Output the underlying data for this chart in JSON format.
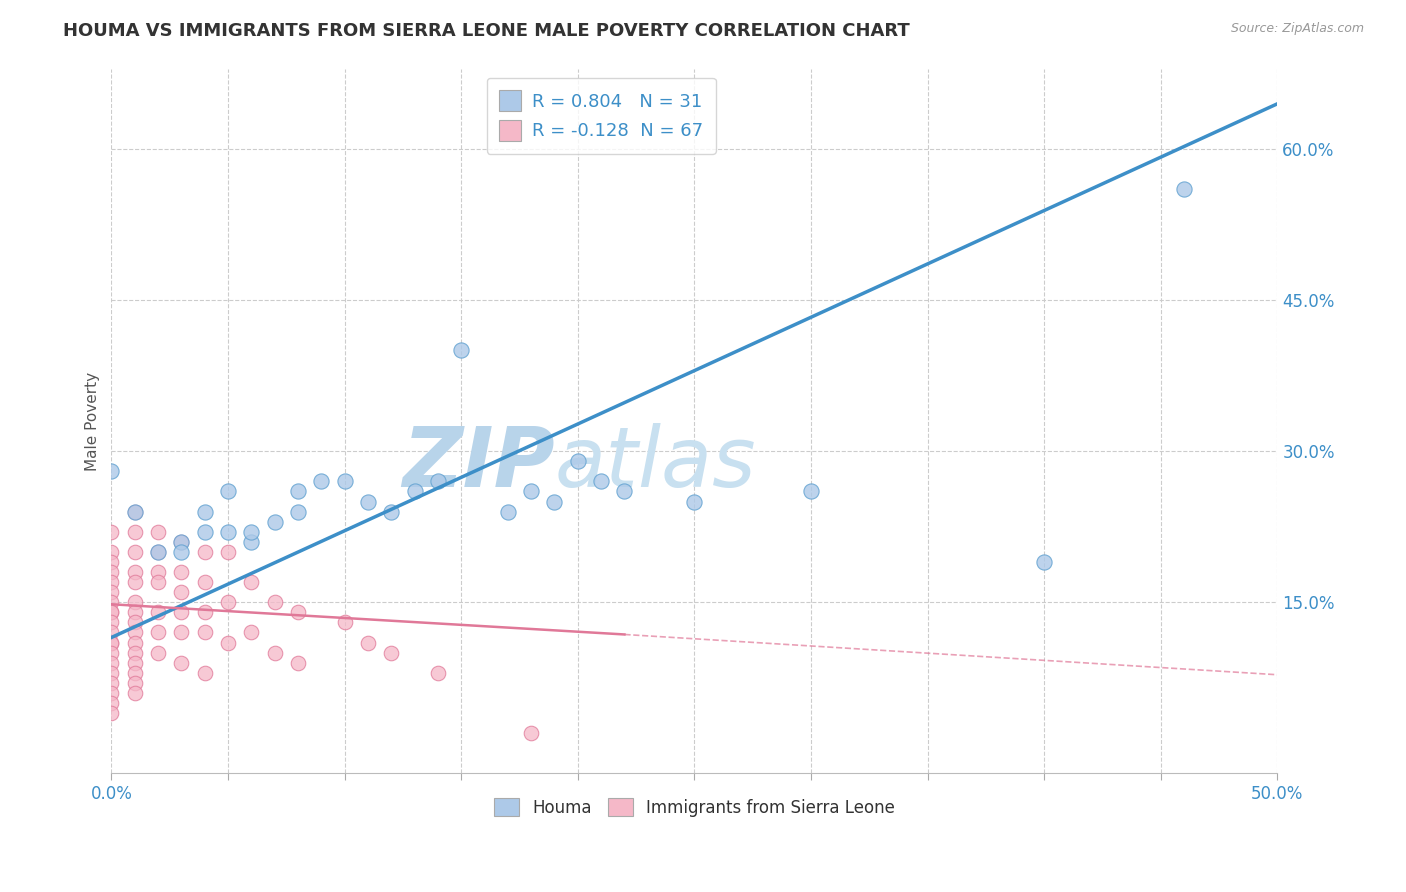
{
  "title": "HOUMA VS IMMIGRANTS FROM SIERRA LEONE MALE POVERTY CORRELATION CHART",
  "source": "Source: ZipAtlas.com",
  "ylabel": "Male Poverty",
  "xlim": [
    0.0,
    0.5
  ],
  "ylim": [
    -0.02,
    0.68
  ],
  "xticks": [
    0.0,
    0.05,
    0.1,
    0.15,
    0.2,
    0.25,
    0.3,
    0.35,
    0.4,
    0.45,
    0.5
  ],
  "xticklabels": [
    "0.0%",
    "",
    "",
    "",
    "",
    "",
    "",
    "",
    "",
    "",
    "50.0%"
  ],
  "yticks_right": [
    0.15,
    0.3,
    0.45,
    0.6
  ],
  "ytick_right_labels": [
    "15.0%",
    "30.0%",
    "45.0%",
    "60.0%"
  ],
  "houma_R": 0.804,
  "houma_N": 31,
  "sierra_leone_R": -0.128,
  "sierra_leone_N": 67,
  "houma_color": "#adc9e8",
  "houma_color_dark": "#5fa0d0",
  "houma_line_color": "#3d8fc8",
  "sierra_color": "#f5b8c8",
  "sierra_color_dark": "#e07898",
  "sierra_line_color": "#e07898",
  "watermark_color": "#d0e8f5",
  "background_color": "#ffffff",
  "grid_color": "#cccccc",
  "houma_x": [
    0.0,
    0.01,
    0.02,
    0.03,
    0.03,
    0.04,
    0.04,
    0.05,
    0.05,
    0.06,
    0.06,
    0.07,
    0.08,
    0.08,
    0.09,
    0.1,
    0.11,
    0.12,
    0.13,
    0.14,
    0.15,
    0.17,
    0.18,
    0.19,
    0.2,
    0.21,
    0.22,
    0.25,
    0.3,
    0.4,
    0.46
  ],
  "houma_y": [
    0.28,
    0.24,
    0.2,
    0.21,
    0.2,
    0.22,
    0.24,
    0.22,
    0.26,
    0.21,
    0.22,
    0.23,
    0.24,
    0.26,
    0.27,
    0.27,
    0.25,
    0.24,
    0.26,
    0.27,
    0.4,
    0.24,
    0.26,
    0.25,
    0.29,
    0.27,
    0.26,
    0.25,
    0.26,
    0.19,
    0.56
  ],
  "sierra_x": [
    0.0,
    0.0,
    0.0,
    0.0,
    0.0,
    0.0,
    0.0,
    0.0,
    0.0,
    0.0,
    0.0,
    0.0,
    0.0,
    0.0,
    0.0,
    0.0,
    0.0,
    0.0,
    0.0,
    0.0,
    0.01,
    0.01,
    0.01,
    0.01,
    0.01,
    0.01,
    0.01,
    0.01,
    0.01,
    0.01,
    0.01,
    0.01,
    0.01,
    0.01,
    0.01,
    0.02,
    0.02,
    0.02,
    0.02,
    0.02,
    0.02,
    0.02,
    0.03,
    0.03,
    0.03,
    0.03,
    0.03,
    0.03,
    0.04,
    0.04,
    0.04,
    0.04,
    0.04,
    0.05,
    0.05,
    0.05,
    0.06,
    0.06,
    0.07,
    0.07,
    0.08,
    0.08,
    0.1,
    0.11,
    0.12,
    0.14,
    0.18
  ],
  "sierra_y": [
    0.22,
    0.2,
    0.19,
    0.18,
    0.17,
    0.16,
    0.15,
    0.14,
    0.14,
    0.13,
    0.12,
    0.11,
    0.11,
    0.1,
    0.09,
    0.08,
    0.07,
    0.06,
    0.05,
    0.04,
    0.24,
    0.22,
    0.2,
    0.18,
    0.17,
    0.15,
    0.14,
    0.13,
    0.12,
    0.11,
    0.1,
    0.09,
    0.08,
    0.07,
    0.06,
    0.22,
    0.2,
    0.18,
    0.17,
    0.14,
    0.12,
    0.1,
    0.21,
    0.18,
    0.16,
    0.14,
    0.12,
    0.09,
    0.2,
    0.17,
    0.14,
    0.12,
    0.08,
    0.2,
    0.15,
    0.11,
    0.17,
    0.12,
    0.15,
    0.1,
    0.14,
    0.09,
    0.13,
    0.11,
    0.1,
    0.08,
    0.02
  ],
  "trend_houma_x0": 0.0,
  "trend_houma_y0": 0.115,
  "trend_houma_x1": 0.5,
  "trend_houma_y1": 0.645,
  "trend_sierra_x0": 0.0,
  "trend_sierra_y0": 0.148,
  "trend_sierra_x1": 0.22,
  "trend_sierra_y1": 0.118,
  "trend_sierra_dash_x0": 0.22,
  "trend_sierra_dash_y0": 0.118,
  "trend_sierra_dash_x1": 0.5,
  "trend_sierra_dash_y1": 0.078
}
